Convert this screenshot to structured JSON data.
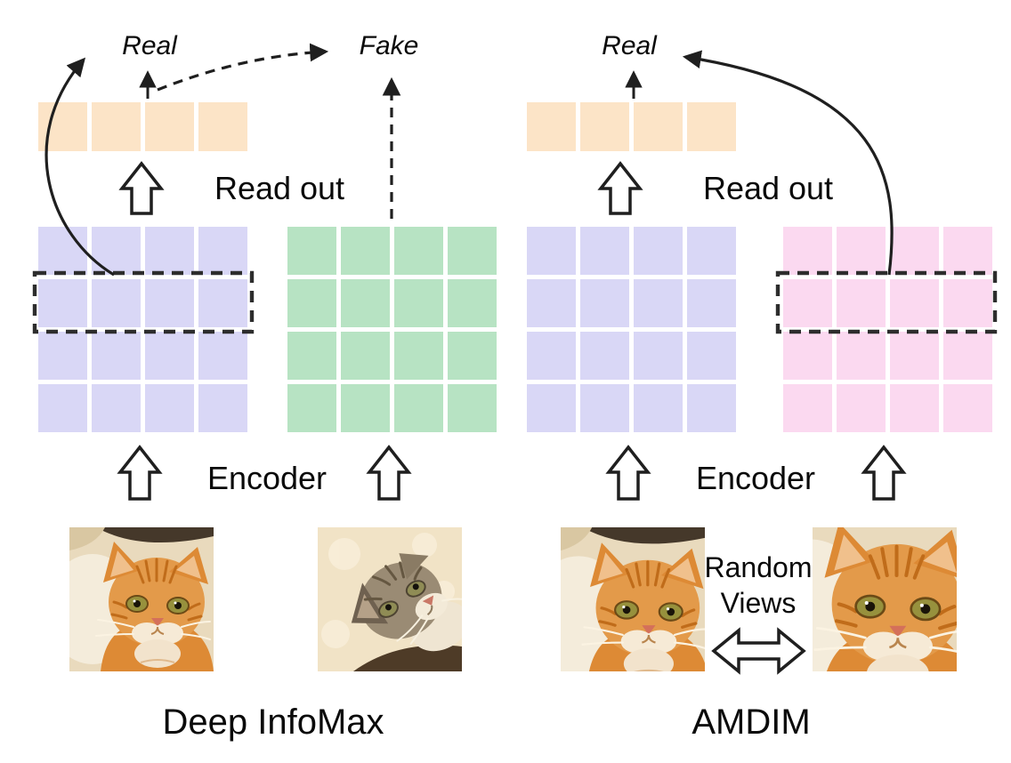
{
  "figure": {
    "left_panel": {
      "title": "Deep InfoMax",
      "real_label": "Real",
      "fake_label": "Fake",
      "read_out_label": "Read out",
      "encoder_label": "Encoder"
    },
    "right_panel": {
      "title": "AMDIM",
      "real_label": "Real",
      "read_out_label": "Read out",
      "encoder_label": "Encoder",
      "random_views_line1": "Random",
      "random_views_line2": "Views"
    }
  },
  "grids": [
    {
      "id": "dim-readout-vector",
      "rows": 1,
      "cols": 4,
      "square_color": "#fce4c7"
    },
    {
      "id": "dim-feature-map-real",
      "rows": 4,
      "cols": 4,
      "square_color": "#d9d7f6",
      "highlight_row": 2
    },
    {
      "id": "dim-feature-map-fake",
      "rows": 4,
      "cols": 4,
      "square_color": "#b7e3c3"
    },
    {
      "id": "amdim-readout-vector",
      "rows": 1,
      "cols": 4,
      "square_color": "#fce4c7"
    },
    {
      "id": "amdim-feature-map-view1",
      "rows": 4,
      "cols": 4,
      "square_color": "#d9d7f6"
    },
    {
      "id": "amdim-feature-map-view2",
      "rows": 4,
      "cols": 4,
      "square_color": "#fbd9f0",
      "highlight_row": 2
    }
  ],
  "colors": {
    "arrow": "#1f1f1f",
    "text": "#0a0a0a",
    "background": "#ffffff"
  }
}
